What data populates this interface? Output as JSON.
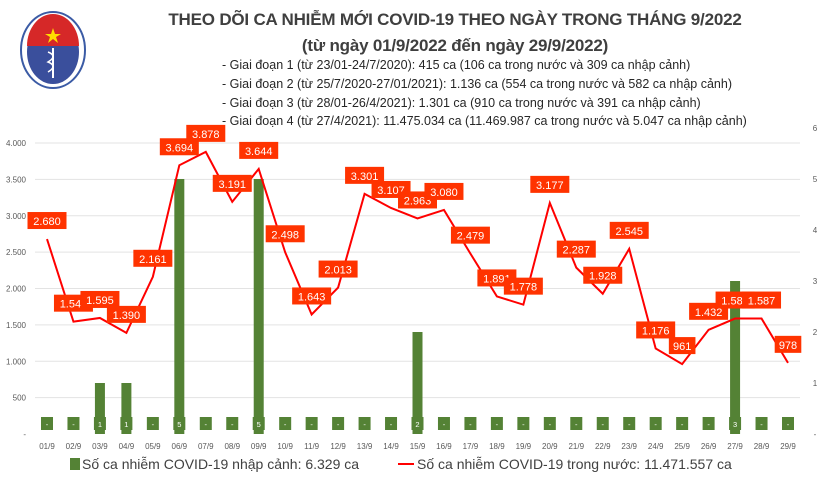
{
  "header": {
    "title": "THEO DÕI CA NHIỄM MỚI COVID-19 THEO NGÀY TRONG THÁNG 9/2022",
    "subtitle": "(từ ngày 01/9/2022 đến ngày 29/9/2022)",
    "stages": [
      "- Giai đoạn 1 (từ 23/01-24/7/2020): 415 ca (106 ca trong nước và 309 ca nhập cảnh)",
      "- Giai đoạn 2 (từ 25/7/2020-27/01/2021): 1.136 ca (554 ca trong nước và 582 ca nhập cảnh)",
      "- Giai đoạn 3 (từ 28/01-26/4/2021): 1.301 ca (910 ca trong nước và 391 ca nhập cảnh)",
      "- Giai đoạn 4 (từ 27/4/2021): 11.475.034 ca (11.469.987 ca trong nước và 5.047 ca nhập cảnh)"
    ],
    "logo_text": "BỘ Y TẾ - MINISTRY OF HEALTH"
  },
  "chart_data": {
    "type": "bar+line",
    "categories": [
      "01/9",
      "02/9",
      "03/9",
      "04/9",
      "05/9",
      "06/9",
      "07/9",
      "08/9",
      "09/9",
      "10/9",
      "11/9",
      "12/9",
      "13/9",
      "14/9",
      "15/9",
      "16/9",
      "17/9",
      "18/9",
      "19/9",
      "20/9",
      "21/9",
      "22/9",
      "23/9",
      "24/9",
      "25/9",
      "26/9",
      "27/9",
      "28/9",
      "29/9"
    ],
    "series": [
      {
        "name": "Số ca nhiễm COVID-19 nhập cảnh: 6.329 ca",
        "type": "bar",
        "axis": "right",
        "color": "#548235",
        "values": [
          0,
          0,
          1,
          1,
          0,
          5,
          0,
          0,
          5,
          0,
          0,
          0,
          0,
          0,
          2,
          0,
          0,
          0,
          0,
          0,
          0,
          0,
          0,
          0,
          0,
          0,
          3,
          0,
          0
        ],
        "labels": [
          "-",
          "-",
          "1",
          "1",
          "-",
          "5",
          "-",
          "-",
          "5",
          "-",
          "-",
          "-",
          "-",
          "-",
          "2",
          "-",
          "-",
          "-",
          "-",
          "-",
          "-",
          "-",
          "-",
          "-",
          "-",
          "-",
          "3",
          "-",
          "-"
        ]
      },
      {
        "name": "Số ca nhiễm COVID-19 trong nước: 11.471.557 ca",
        "type": "line",
        "axis": "left",
        "color": "#ff0000",
        "values": [
          2680,
          1544,
          1595,
          1390,
          2161,
          3694,
          3878,
          3191,
          3644,
          2498,
          1643,
          2013,
          3301,
          3107,
          2963,
          3080,
          2479,
          1891,
          1778,
          3177,
          2287,
          1928,
          2545,
          1176,
          961,
          1432,
          1587,
          1587,
          978
        ],
        "labels": [
          "2.680",
          "1.544",
          "1.595",
          "1.390",
          "2.161",
          "3.694",
          "3.878",
          "3.191",
          "3.644",
          "2.498",
          "1.643",
          "2.013",
          "3.301",
          "3.107",
          "2.963",
          "3.080",
          "2.479",
          "1.891",
          "1.778",
          "3.177",
          "2.287",
          "1.928",
          "2.545",
          "1.176",
          "961",
          "1.432",
          "1.587",
          "1.587",
          "978"
        ]
      }
    ],
    "left_axis": {
      "ylim": [
        0,
        4000
      ],
      "ticks": [
        "-",
        "500",
        "1.000",
        "1.500",
        "2.000",
        "2.500",
        "3.000",
        "3.500",
        "4.000"
      ]
    },
    "right_axis": {
      "ylim": [
        0,
        6
      ],
      "ticks": [
        "-",
        "1",
        "2",
        "3",
        "4",
        "5",
        "6"
      ]
    },
    "grid": true,
    "legend": "bottom"
  }
}
